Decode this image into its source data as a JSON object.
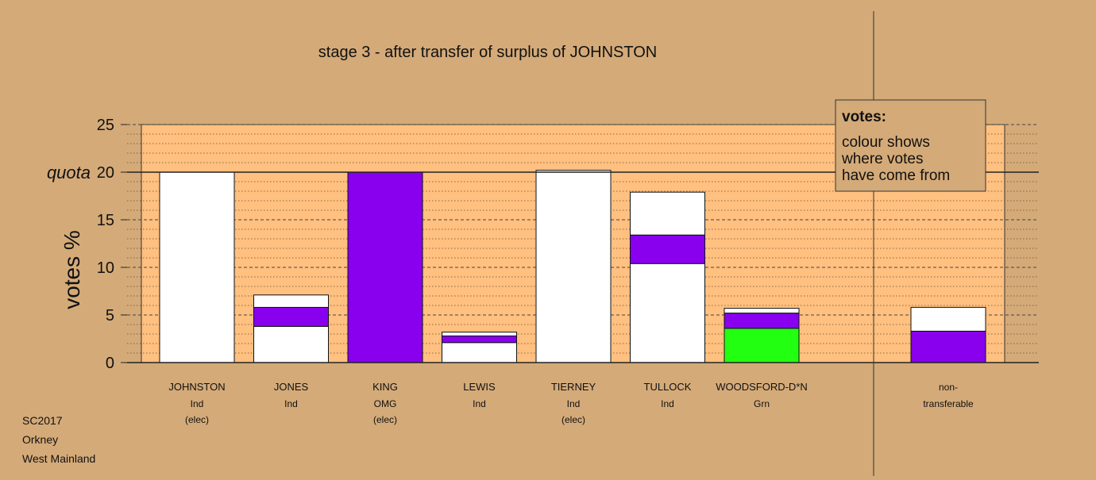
{
  "chart_data": {
    "type": "bar",
    "stacked": true,
    "title": "stage 3 - after transfer of surplus of JOHNSTON",
    "ylabel": "votes %",
    "ylim": [
      0,
      25
    ],
    "yticks": [
      0,
      5,
      10,
      15,
      20,
      25
    ],
    "quota": 20,
    "quota_label": "quota",
    "grid": true,
    "colors": {
      "background": "#d4aa78",
      "plot_area": "#ffc080",
      "other": "#ffffff",
      "omg": "#8800ee",
      "green": "#22ff11"
    },
    "candidates": [
      {
        "name": "JOHNSTON",
        "party": "Ind",
        "status": "(elec)",
        "segments": [
          {
            "color": "#ffffff",
            "value": 20.0
          }
        ]
      },
      {
        "name": "JONES",
        "party": "Ind",
        "status": "",
        "segments": [
          {
            "color": "#ffffff",
            "value": 3.8
          },
          {
            "color": "#8800ee",
            "value": 2.0
          },
          {
            "color": "#ffffff",
            "value": 1.3
          }
        ]
      },
      {
        "name": "KING",
        "party": "OMG",
        "status": "(elec)",
        "segments": [
          {
            "color": "#8800ee",
            "value": 20.0
          }
        ]
      },
      {
        "name": "LEWIS",
        "party": "Ind",
        "status": "",
        "segments": [
          {
            "color": "#ffffff",
            "value": 2.1
          },
          {
            "color": "#8800ee",
            "value": 0.7
          },
          {
            "color": "#ffffff",
            "value": 0.4
          }
        ]
      },
      {
        "name": "TIERNEY",
        "party": "Ind",
        "status": "(elec)",
        "segments": [
          {
            "color": "#ffffff",
            "value": 20.2
          }
        ]
      },
      {
        "name": "TULLOCK",
        "party": "Ind",
        "status": "",
        "segments": [
          {
            "color": "#ffffff",
            "value": 10.4
          },
          {
            "color": "#8800ee",
            "value": 3.0
          },
          {
            "color": "#ffffff",
            "value": 4.5
          }
        ]
      },
      {
        "name": "WOODSFORD-D*N",
        "party": "Grn",
        "status": "",
        "segments": [
          {
            "color": "#22ff11",
            "value": 3.6
          },
          {
            "color": "#8800ee",
            "value": 1.6
          },
          {
            "color": "#ffffff",
            "value": 0.5
          }
        ]
      }
    ],
    "non_transferable": {
      "label_line1": "non-",
      "label_line2": "transferable",
      "segments": [
        {
          "color": "#8800ee",
          "value": 3.3
        },
        {
          "color": "#ffffff",
          "value": 2.5
        }
      ]
    },
    "legend": {
      "placement": "top-right",
      "title": "votes:",
      "lines": [
        "colour shows",
        "where votes",
        "have come from"
      ]
    }
  },
  "footer": {
    "line1": "SC2017",
    "line2": "Orkney",
    "line3": "West Mainland"
  }
}
